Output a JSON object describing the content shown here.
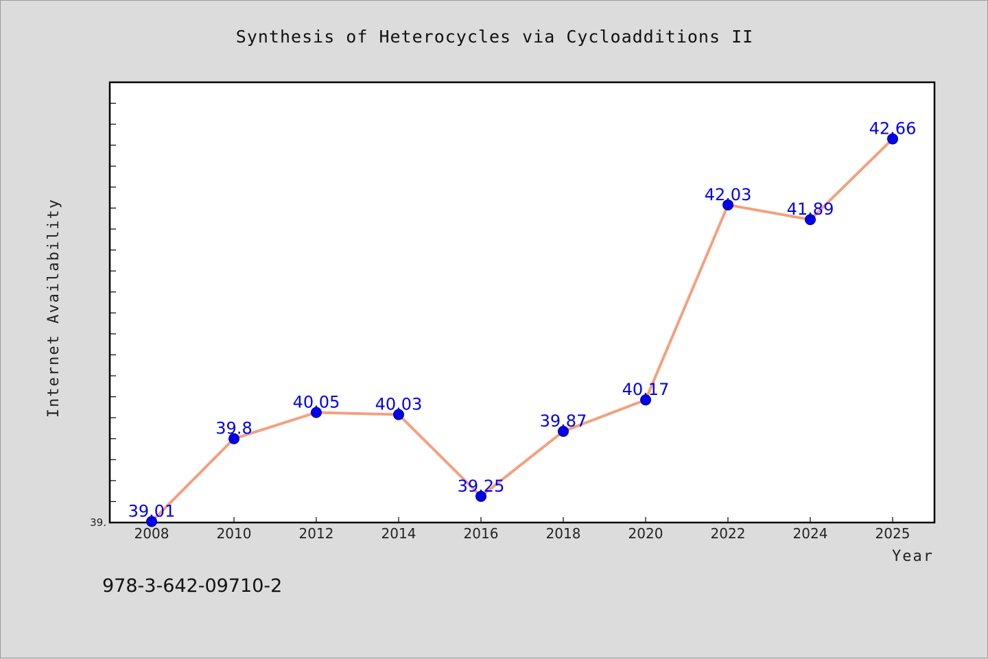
{
  "chart_data": {
    "type": "line",
    "title": "Synthesis of Heterocycles via Cycloadditions II",
    "xlabel": "Year",
    "ylabel": "Internet Availability",
    "categories": [
      "2008",
      "2010",
      "2012",
      "2014",
      "2016",
      "2018",
      "2020",
      "2022",
      "2024",
      "2025"
    ],
    "series": [
      {
        "values": [
          39.01,
          39.8,
          40.05,
          40.03,
          39.25,
          39.87,
          40.17,
          42.03,
          41.89,
          42.66
        ],
        "data_labels": [
          "39.01",
          "39.8",
          "40.05",
          "40.03",
          "39.25",
          "39.87",
          "40.17",
          "42.03",
          "41.89",
          "42.66"
        ]
      }
    ],
    "y_tick_label": "39.",
    "ylim": [
      39.0,
      43.2
    ],
    "legend": "none",
    "grid": false,
    "line_color": "#f4a07e",
    "marker_color": "#0000ee",
    "label_color": "#0000ee"
  },
  "footer": {
    "isbn": "978-3-642-09710-2"
  }
}
